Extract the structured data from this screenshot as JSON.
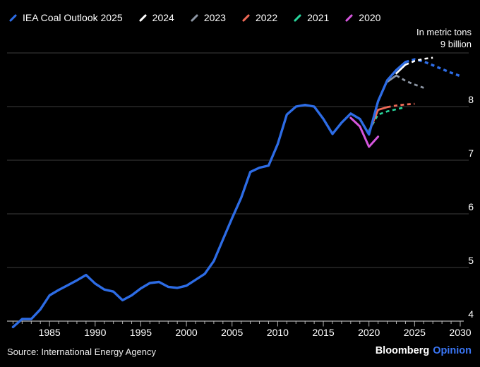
{
  "legend": {
    "items": [
      {
        "label": "IEA Coal Outlook 2025",
        "color": "#2d6ce5"
      },
      {
        "label": "2024",
        "color": "#ffffff"
      },
      {
        "label": "2023",
        "color": "#8d96a4"
      },
      {
        "label": "2022",
        "color": "#ee6956"
      },
      {
        "label": "2021",
        "color": "#28d59b"
      },
      {
        "label": "2020",
        "color": "#d556dd"
      }
    ]
  },
  "axis_note": {
    "line1": "In metric tons",
    "line2": "9 billion"
  },
  "footer": {
    "source": "Source: International Energy Agency",
    "brand": "Bloomberg",
    "brand_suffix": "Opinion"
  },
  "colors": {
    "background": "#000000",
    "grid": "#3d3d3d",
    "axis": "#b3b3b3",
    "text": "#ffffff",
    "opinion_blue": "#3a76f5"
  },
  "chart_data": {
    "type": "line",
    "title": "",
    "xlabel": "",
    "ylabel": "In metric tons (billions)",
    "unit": "billion metric tons",
    "x_axis": {
      "range": [
        1980.5,
        2031
      ],
      "tick_years": [
        1985,
        1990,
        1995,
        2000,
        2005,
        2010,
        2015,
        2020,
        2025,
        2030
      ],
      "minor_tick_start": 1981,
      "minor_tick_end": 2030
    },
    "y_axis": {
      "range": [
        4,
        9
      ],
      "ticks": [
        4,
        5,
        6,
        7,
        8
      ],
      "top_label": "9 billion",
      "grid": true
    },
    "legend_position": "top-left",
    "series": [
      {
        "name": "2020",
        "color": "#d556dd",
        "width": 3,
        "solid": [
          [
            2018,
            7.79
          ],
          [
            2019,
            7.63
          ],
          [
            2020,
            7.25
          ],
          [
            2021,
            7.44
          ]
        ],
        "dotted": []
      },
      {
        "name": "2021",
        "color": "#28d59b",
        "width": 2.6,
        "solid": [],
        "dotted": [
          [
            2020,
            7.55
          ],
          [
            2021,
            7.85
          ],
          [
            2022,
            7.91
          ],
          [
            2023,
            7.95
          ],
          [
            2024,
            7.99
          ]
        ]
      },
      {
        "name": "2022",
        "color": "#ee6956",
        "width": 2.8,
        "solid": [
          [
            2020,
            7.52
          ],
          [
            2021,
            7.94
          ],
          [
            2022,
            7.99
          ]
        ],
        "dotted": [
          [
            2022,
            7.99
          ],
          [
            2023,
            8.02
          ],
          [
            2024,
            8.04
          ],
          [
            2025,
            8.05
          ]
        ]
      },
      {
        "name": "2023",
        "color": "#8d96a4",
        "width": 2.8,
        "solid": [
          [
            2022,
            8.46
          ],
          [
            2023,
            8.58
          ]
        ],
        "dotted": [
          [
            2023,
            8.58
          ],
          [
            2024,
            8.48
          ],
          [
            2025,
            8.41
          ],
          [
            2026,
            8.35
          ]
        ]
      },
      {
        "name": "IEA Coal Outlook 2025",
        "color": "#2d6ce5",
        "width": 3.4,
        "solid": [
          [
            1981,
            3.89
          ],
          [
            1982,
            4.04
          ],
          [
            1983,
            4.04
          ],
          [
            1984,
            4.22
          ],
          [
            1985,
            4.48
          ],
          [
            1986,
            4.58
          ],
          [
            1987,
            4.67
          ],
          [
            1988,
            4.76
          ],
          [
            1989,
            4.86
          ],
          [
            1990,
            4.7
          ],
          [
            1991,
            4.59
          ],
          [
            1992,
            4.55
          ],
          [
            1993,
            4.39
          ],
          [
            1994,
            4.48
          ],
          [
            1995,
            4.61
          ],
          [
            1996,
            4.71
          ],
          [
            1997,
            4.73
          ],
          [
            1998,
            4.64
          ],
          [
            1999,
            4.62
          ],
          [
            2000,
            4.66
          ],
          [
            2001,
            4.77
          ],
          [
            2002,
            4.88
          ],
          [
            2003,
            5.12
          ],
          [
            2004,
            5.52
          ],
          [
            2005,
            5.92
          ],
          [
            2006,
            6.3
          ],
          [
            2007,
            6.78
          ],
          [
            2008,
            6.86
          ],
          [
            2009,
            6.9
          ],
          [
            2010,
            7.3
          ],
          [
            2011,
            7.85
          ],
          [
            2012,
            8.0
          ],
          [
            2013,
            8.03
          ],
          [
            2014,
            8.0
          ],
          [
            2015,
            7.77
          ],
          [
            2016,
            7.49
          ],
          [
            2017,
            7.7
          ],
          [
            2018,
            7.87
          ],
          [
            2019,
            7.77
          ],
          [
            2020,
            7.48
          ],
          [
            2021,
            8.1
          ],
          [
            2022,
            8.49
          ],
          [
            2023,
            8.68
          ],
          [
            2024,
            8.83
          ]
        ],
        "dotted": [
          [
            2024,
            8.83
          ],
          [
            2025,
            8.88
          ],
          [
            2026,
            8.84
          ],
          [
            2027,
            8.77
          ],
          [
            2028,
            8.7
          ],
          [
            2029,
            8.63
          ],
          [
            2030,
            8.57
          ]
        ]
      },
      {
        "name": "2024",
        "color": "#ffffff",
        "width": 2.6,
        "solid": [
          [
            2023,
            8.62
          ],
          [
            2024,
            8.78
          ]
        ],
        "dotted": [
          [
            2024,
            8.78
          ],
          [
            2025,
            8.85
          ],
          [
            2026,
            8.89
          ],
          [
            2027,
            8.91
          ]
        ]
      }
    ]
  }
}
